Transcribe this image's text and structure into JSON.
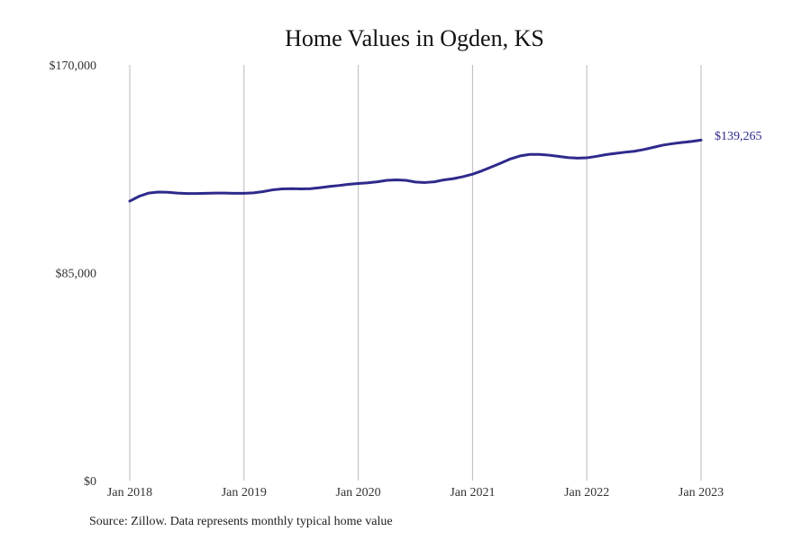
{
  "chart_data": {
    "type": "line",
    "title": "Home Values in Ogden, KS",
    "xlabel": "",
    "ylabel": "",
    "line_color": "#2e2a8c",
    "grid": "vertical",
    "ylim": [
      0,
      170000
    ],
    "xlim": [
      "2018-01",
      "2023-01"
    ],
    "y_ticks": [
      {
        "value": 0,
        "label": "$0"
      },
      {
        "value": 85000,
        "label": "$85,000"
      },
      {
        "value": 170000,
        "label": "$170,000"
      }
    ],
    "x_ticks": [
      {
        "value": "2018-01",
        "label": "Jan 2018"
      },
      {
        "value": "2019-01",
        "label": "Jan 2019"
      },
      {
        "value": "2020-01",
        "label": "Jan 2020"
      },
      {
        "value": "2021-01",
        "label": "Jan 2021"
      },
      {
        "value": "2022-01",
        "label": "Jan 2022"
      },
      {
        "value": "2023-01",
        "label": "Jan 2023"
      }
    ],
    "series": [
      {
        "x": [
          "2018-01",
          "2018-02",
          "2018-03",
          "2018-04",
          "2018-05",
          "2018-06",
          "2018-07",
          "2018-08",
          "2018-09",
          "2018-10",
          "2018-11",
          "2018-12",
          "2019-01",
          "2019-02",
          "2019-03",
          "2019-04",
          "2019-05",
          "2019-06",
          "2019-07",
          "2019-08",
          "2019-09",
          "2019-10",
          "2019-11",
          "2019-12",
          "2020-01",
          "2020-02",
          "2020-03",
          "2020-04",
          "2020-05",
          "2020-06",
          "2020-07",
          "2020-08",
          "2020-09",
          "2020-10",
          "2020-11",
          "2020-12",
          "2021-01",
          "2021-02",
          "2021-03",
          "2021-04",
          "2021-05",
          "2021-06",
          "2021-07",
          "2021-08",
          "2021-09",
          "2021-10",
          "2021-11",
          "2021-12",
          "2022-01",
          "2022-02",
          "2022-03",
          "2022-04",
          "2022-05",
          "2022-06",
          "2022-07",
          "2022-08",
          "2022-09",
          "2022-10",
          "2022-11",
          "2022-12",
          "2023-01"
        ],
        "values": [
          114300,
          116300,
          117600,
          118000,
          117900,
          117600,
          117400,
          117400,
          117500,
          117600,
          117600,
          117500,
          117500,
          117700,
          118200,
          118900,
          119300,
          119400,
          119300,
          119400,
          119800,
          120300,
          120700,
          121200,
          121500,
          121800,
          122200,
          122800,
          123000,
          122800,
          122100,
          121900,
          122200,
          123000,
          123500,
          124300,
          125300,
          126700,
          128300,
          129900,
          131600,
          132800,
          133400,
          133400,
          133100,
          132600,
          132100,
          131900,
          132000,
          132600,
          133300,
          133800,
          134300,
          134700,
          135400,
          136300,
          137200,
          137800,
          138300,
          138700,
          139265
        ]
      }
    ],
    "end_label": "$139,265",
    "source": "Source: Zillow. Data represents monthly typical home value"
  }
}
